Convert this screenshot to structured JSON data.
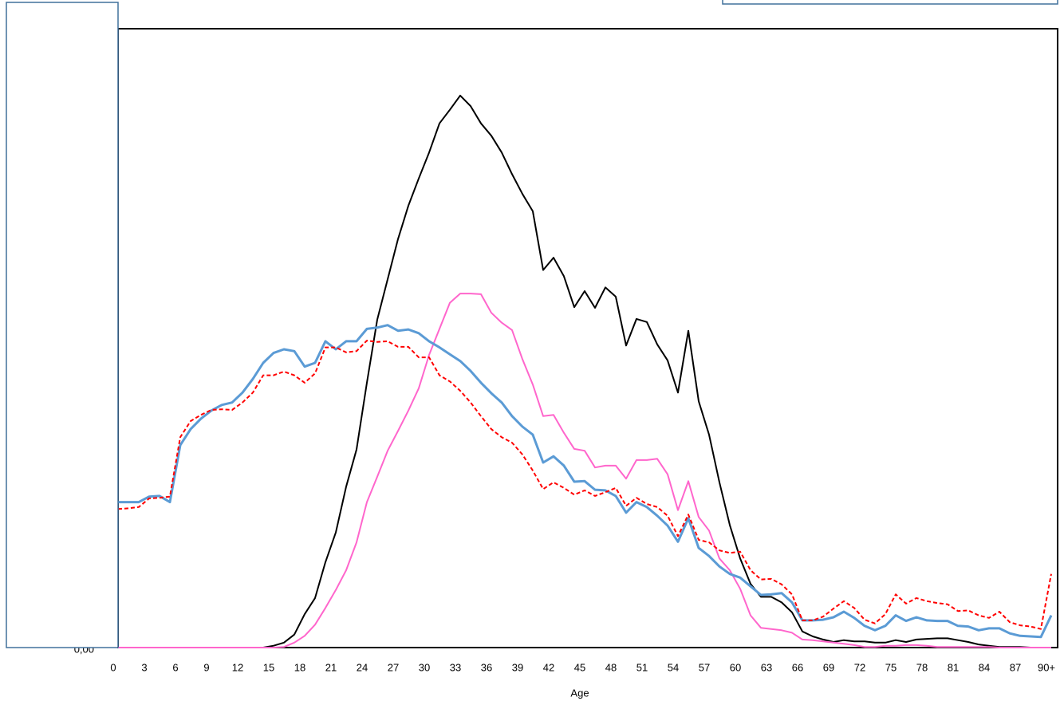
{
  "chart_data": {
    "type": "line",
    "x_label": "Age",
    "categories": [
      "0",
      null,
      null,
      "3",
      null,
      null,
      "6",
      null,
      null,
      "9",
      null,
      null,
      "12",
      null,
      null,
      "15",
      null,
      null,
      "18",
      null,
      null,
      "21",
      null,
      null,
      "24",
      null,
      null,
      "27",
      null,
      null,
      "30",
      null,
      null,
      "33",
      null,
      null,
      "36",
      null,
      null,
      "39",
      null,
      null,
      "42",
      null,
      null,
      "45",
      null,
      null,
      "48",
      null,
      null,
      "51",
      null,
      null,
      "54",
      null,
      null,
      "57",
      null,
      null,
      "60",
      null,
      null,
      "63",
      null,
      null,
      "66",
      null,
      null,
      "69",
      null,
      null,
      "72",
      null,
      null,
      "75",
      null,
      null,
      "78",
      null,
      null,
      "81",
      null,
      null,
      "84",
      null,
      null,
      "87",
      null,
      null,
      "90+"
    ],
    "ylim": [
      0,
      100
    ],
    "yticks": [
      {
        "value": 0,
        "label": "0,00"
      }
    ],
    "series": [
      {
        "color": "#000000",
        "width": 2,
        "dashed": false,
        "values": [
          0,
          0,
          0,
          0,
          0,
          0,
          0,
          0,
          0,
          0,
          0,
          0,
          0,
          0,
          0,
          0.3,
          0.8,
          2.1,
          5.4,
          8,
          13.8,
          18.6,
          26,
          32,
          42.8,
          53,
          59.5,
          66,
          71.4,
          75.8,
          80,
          84.7,
          86.9,
          89.2,
          87.5,
          84.7,
          82.7,
          80,
          76.5,
          73.3,
          70.5,
          61,
          63,
          60,
          55,
          57.6,
          54.9,
          58.2,
          56.7,
          48.8,
          53.1,
          52.6,
          49,
          46.4,
          41.2,
          51.2,
          39.8,
          34.4,
          26.7,
          19.8,
          14.4,
          10.3,
          8.2,
          8.2,
          7.3,
          5.7,
          2.6,
          1.8,
          1.3,
          0.9,
          1.2,
          1,
          1,
          0.8,
          0.8,
          1.2,
          0.9,
          1.3,
          1.4,
          1.5,
          1.5,
          1.2,
          0.9,
          0.5,
          0.3,
          0.1,
          0.1,
          0.1,
          0,
          0,
          0
        ]
      },
      {
        "color": "#ff66cc",
        "width": 2,
        "dashed": false,
        "values": [
          0,
          0,
          0,
          0,
          0,
          0,
          0,
          0,
          0,
          0,
          0,
          0,
          0,
          0,
          0,
          0,
          0.1,
          0.8,
          1.9,
          3.7,
          6.4,
          9.3,
          12.5,
          17,
          23.5,
          27.6,
          31.8,
          35,
          38.3,
          41.9,
          47.3,
          51.5,
          55.7,
          57.2,
          57.2,
          57.1,
          54.1,
          52.5,
          51.3,
          46.6,
          42.5,
          37.4,
          37.6,
          34.7,
          32.1,
          31.8,
          29.1,
          29.4,
          29.4,
          27.3,
          30.3,
          30.3,
          30.5,
          28,
          22.2,
          26.9,
          21.1,
          18.9,
          14.4,
          12.5,
          9.5,
          5.2,
          3.2,
          3,
          2.8,
          2.4,
          1.3,
          1.2,
          1,
          0.8,
          0.6,
          0.4,
          0.1,
          0.1,
          0.3,
          0.3,
          0.4,
          0.4,
          0.3,
          0.1,
          0.1,
          0.1,
          0.1,
          0.1,
          0.1,
          0,
          0,
          0,
          0,
          0,
          0
        ]
      },
      {
        "color": "#5b9bd5",
        "width": 3,
        "dashed": false,
        "values": [
          23.5,
          23.5,
          23.5,
          24.4,
          24.5,
          23.5,
          32.7,
          35.3,
          37,
          38.3,
          39.2,
          39.6,
          41.2,
          43.4,
          46,
          47.6,
          48.2,
          47.9,
          45.4,
          46,
          49.5,
          48.2,
          49.5,
          49.5,
          51.5,
          51.7,
          52.1,
          51.2,
          51.4,
          50.8,
          49.5,
          48.5,
          47.4,
          46.3,
          44.7,
          42.8,
          41.1,
          39.6,
          37.4,
          35.7,
          34.4,
          29.9,
          30.9,
          29.4,
          26.8,
          26.9,
          25.5,
          25.4,
          24.5,
          21.8,
          23.5,
          22.7,
          21.3,
          19.7,
          17.1,
          20.9,
          16.1,
          14.8,
          13.1,
          11.9,
          11.3,
          9.9,
          8.5,
          8.6,
          8.8,
          7.3,
          4.4,
          4.4,
          4.5,
          4.9,
          5.8,
          4.8,
          3.5,
          2.8,
          3.5,
          5.2,
          4.3,
          4.9,
          4.4,
          4.3,
          4.3,
          3.5,
          3.4,
          2.8,
          3.1,
          3.1,
          2.3,
          1.9,
          1.8,
          1.7,
          5.2
        ]
      },
      {
        "color": "#ff0000",
        "width": 2,
        "dashed": true,
        "values": [
          22.4,
          22.5,
          22.7,
          24.1,
          24.2,
          24.4,
          34,
          36.6,
          37.6,
          38.4,
          38.5,
          38.4,
          39.6,
          41.2,
          44,
          44,
          44.6,
          44,
          42.8,
          44.3,
          48.5,
          48.5,
          47.7,
          47.9,
          49.6,
          49.4,
          49.5,
          48.6,
          48.6,
          46.9,
          46.9,
          44,
          43,
          41.5,
          39.6,
          37.4,
          35.3,
          34,
          33.1,
          31.2,
          28.6,
          25.6,
          26.7,
          25.8,
          24.7,
          25.4,
          24.5,
          25.1,
          25.8,
          22.9,
          24.2,
          23.2,
          22.7,
          21.3,
          18,
          21.5,
          17.4,
          17,
          15.7,
          15.3,
          15.5,
          12.5,
          11,
          11.1,
          10.2,
          8.6,
          4.4,
          4.4,
          5,
          6.3,
          7.5,
          6.4,
          4.5,
          3.9,
          5.4,
          8.6,
          7.1,
          8,
          7.5,
          7.2,
          7,
          5.9,
          6,
          5.2,
          4.8,
          5.8,
          4.1,
          3.6,
          3.4,
          3,
          11.9
        ]
      }
    ]
  }
}
